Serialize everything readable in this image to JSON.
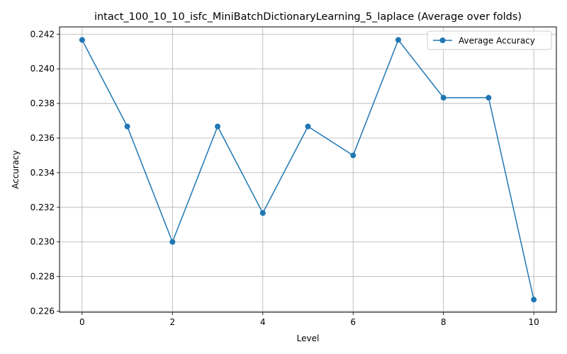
{
  "chart_data": {
    "type": "line",
    "title": "intact_100_10_10_isfc_MiniBatchDictionaryLearning_5_laplace (Average over folds)",
    "xlabel": "Level",
    "ylabel": "Accuracy",
    "x": [
      0,
      1,
      2,
      3,
      4,
      5,
      6,
      7,
      8,
      9,
      10
    ],
    "series": [
      {
        "name": "Average Accuracy",
        "values": [
          0.24167,
          0.23667,
          0.23,
          0.23667,
          0.23167,
          0.23667,
          0.235,
          0.24167,
          0.23833,
          0.23833,
          0.22667
        ],
        "color": "#1f77b4",
        "marker": "circle"
      }
    ],
    "xlim": [
      -0.5,
      10.5
    ],
    "ylim": [
      0.22594,
      0.24242
    ],
    "x_ticks": [
      0,
      2,
      4,
      6,
      8,
      10
    ],
    "x_tick_labels": [
      "0",
      "2",
      "4",
      "6",
      "8",
      "10"
    ],
    "y_ticks": [
      0.226,
      0.228,
      0.23,
      0.232,
      0.234,
      0.236,
      0.238,
      0.24,
      0.242
    ],
    "y_tick_labels": [
      "0.226",
      "0.228",
      "0.230",
      "0.232",
      "0.234",
      "0.236",
      "0.238",
      "0.240",
      "0.242"
    ],
    "grid": true,
    "legend_position": "top-right"
  }
}
